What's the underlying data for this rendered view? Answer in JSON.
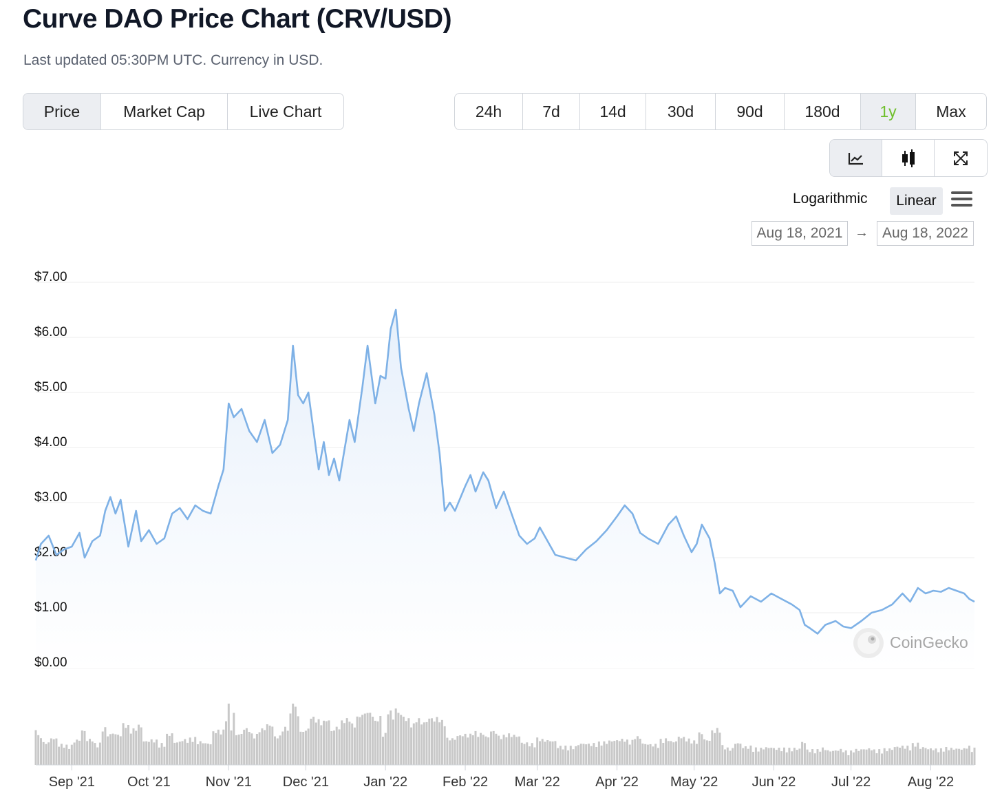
{
  "title": "Curve DAO Price Chart (CRV/USD)",
  "subtitle": "Last updated 05:30PM UTC. Currency in USD.",
  "tabs": [
    {
      "label": "Price",
      "active": true
    },
    {
      "label": "Market Cap",
      "active": false
    },
    {
      "label": "Live Chart",
      "active": false
    }
  ],
  "ranges": [
    {
      "label": "24h",
      "active": false
    },
    {
      "label": "7d",
      "active": false
    },
    {
      "label": "14d",
      "active": false
    },
    {
      "label": "30d",
      "active": false
    },
    {
      "label": "90d",
      "active": false
    },
    {
      "label": "180d",
      "active": false
    },
    {
      "label": "1y",
      "active": true
    },
    {
      "label": "Max",
      "active": false
    }
  ],
  "view_buttons": [
    {
      "icon": "line-chart-icon",
      "active": true
    },
    {
      "icon": "candlestick-icon",
      "active": false
    },
    {
      "icon": "fullscreen-icon",
      "active": false
    }
  ],
  "scale": {
    "logarithmic": "Logarithmic",
    "linear": "Linear",
    "selected": "linear"
  },
  "date_range": {
    "from": "Aug 18, 2021",
    "arrow": "→",
    "to": "Aug 18, 2022"
  },
  "watermark": "CoinGecko",
  "colors": {
    "line": "#7eb1e6",
    "area_top": "#e7f0fb",
    "volume": "#c8c8c8",
    "accent": "#6fbf2c"
  },
  "chart_data": {
    "type": "line",
    "ylim": [
      0,
      7
    ],
    "y_ticks": [
      "$0.00",
      "$1.00",
      "$2.00",
      "$3.00",
      "$4.00",
      "$5.00",
      "$6.00",
      "$7.00"
    ],
    "x_ticks": [
      "Sep '21",
      "Oct '21",
      "Nov '21",
      "Dec '21",
      "Jan '22",
      "Feb '22",
      "Mar '22",
      "Apr '22",
      "May '22",
      "Jun '22",
      "Jul '22",
      "Aug '22"
    ],
    "x_tick_dates": [
      "2021-09-01",
      "2021-10-01",
      "2021-11-01",
      "2021-12-01",
      "2022-01-01",
      "2022-02-01",
      "2022-03-01",
      "2022-04-01",
      "2022-05-01",
      "2022-06-01",
      "2022-07-01",
      "2022-08-01"
    ],
    "x_range": [
      "2021-08-18",
      "2022-08-18"
    ],
    "price_series": {
      "name": "Price",
      "points": [
        [
          "2021-08-18",
          1.95
        ],
        [
          "2021-08-20",
          2.25
        ],
        [
          "2021-08-23",
          2.4
        ],
        [
          "2021-08-26",
          2.05
        ],
        [
          "2021-08-29",
          2.15
        ],
        [
          "2021-09-01",
          2.2
        ],
        [
          "2021-09-04",
          2.45
        ],
        [
          "2021-09-06",
          2.0
        ],
        [
          "2021-09-09",
          2.3
        ],
        [
          "2021-09-12",
          2.4
        ],
        [
          "2021-09-14",
          2.85
        ],
        [
          "2021-09-16",
          3.1
        ],
        [
          "2021-09-18",
          2.8
        ],
        [
          "2021-09-20",
          3.05
        ],
        [
          "2021-09-23",
          2.2
        ],
        [
          "2021-09-26",
          2.85
        ],
        [
          "2021-09-28",
          2.3
        ],
        [
          "2021-10-01",
          2.5
        ],
        [
          "2021-10-04",
          2.25
        ],
        [
          "2021-10-07",
          2.35
        ],
        [
          "2021-10-10",
          2.8
        ],
        [
          "2021-10-13",
          2.9
        ],
        [
          "2021-10-16",
          2.7
        ],
        [
          "2021-10-19",
          2.95
        ],
        [
          "2021-10-22",
          2.85
        ],
        [
          "2021-10-25",
          2.8
        ],
        [
          "2021-10-28",
          3.3
        ],
        [
          "2021-10-30",
          3.6
        ],
        [
          "2021-11-01",
          4.8
        ],
        [
          "2021-11-03",
          4.55
        ],
        [
          "2021-11-06",
          4.7
        ],
        [
          "2021-11-09",
          4.3
        ],
        [
          "2021-11-12",
          4.1
        ],
        [
          "2021-11-15",
          4.5
        ],
        [
          "2021-11-18",
          3.9
        ],
        [
          "2021-11-21",
          4.05
        ],
        [
          "2021-11-24",
          4.5
        ],
        [
          "2021-11-26",
          5.85
        ],
        [
          "2021-11-28",
          4.95
        ],
        [
          "2021-11-30",
          4.8
        ],
        [
          "2021-12-02",
          5.0
        ],
        [
          "2021-12-04",
          4.3
        ],
        [
          "2021-12-06",
          3.6
        ],
        [
          "2021-12-08",
          4.1
        ],
        [
          "2021-12-10",
          3.5
        ],
        [
          "2021-12-12",
          3.8
        ],
        [
          "2021-12-14",
          3.4
        ],
        [
          "2021-12-16",
          3.95
        ],
        [
          "2021-12-18",
          4.5
        ],
        [
          "2021-12-20",
          4.1
        ],
        [
          "2021-12-23",
          5.1
        ],
        [
          "2021-12-25",
          5.85
        ],
        [
          "2021-12-28",
          4.8
        ],
        [
          "2021-12-30",
          5.3
        ],
        [
          "2022-01-01",
          5.25
        ],
        [
          "2022-01-03",
          6.15
        ],
        [
          "2022-01-05",
          6.5
        ],
        [
          "2022-01-07",
          5.45
        ],
        [
          "2022-01-10",
          4.7
        ],
        [
          "2022-01-12",
          4.3
        ],
        [
          "2022-01-14",
          4.8
        ],
        [
          "2022-01-17",
          5.35
        ],
        [
          "2022-01-20",
          4.6
        ],
        [
          "2022-01-22",
          3.9
        ],
        [
          "2022-01-24",
          2.85
        ],
        [
          "2022-01-26",
          3.0
        ],
        [
          "2022-01-28",
          2.85
        ],
        [
          "2022-02-01",
          3.3
        ],
        [
          "2022-02-03",
          3.5
        ],
        [
          "2022-02-05",
          3.2
        ],
        [
          "2022-02-08",
          3.55
        ],
        [
          "2022-02-10",
          3.4
        ],
        [
          "2022-02-13",
          2.9
        ],
        [
          "2022-02-16",
          3.2
        ],
        [
          "2022-02-19",
          2.8
        ],
        [
          "2022-02-22",
          2.4
        ],
        [
          "2022-02-25",
          2.25
        ],
        [
          "2022-02-28",
          2.35
        ],
        [
          "2022-03-02",
          2.55
        ],
        [
          "2022-03-05",
          2.3
        ],
        [
          "2022-03-08",
          2.05
        ],
        [
          "2022-03-12",
          2.0
        ],
        [
          "2022-03-16",
          1.95
        ],
        [
          "2022-03-20",
          2.15
        ],
        [
          "2022-03-24",
          2.3
        ],
        [
          "2022-03-28",
          2.5
        ],
        [
          "2022-04-01",
          2.75
        ],
        [
          "2022-04-04",
          2.95
        ],
        [
          "2022-04-07",
          2.8
        ],
        [
          "2022-04-10",
          2.45
        ],
        [
          "2022-04-13",
          2.35
        ],
        [
          "2022-04-17",
          2.25
        ],
        [
          "2022-04-21",
          2.6
        ],
        [
          "2022-04-24",
          2.75
        ],
        [
          "2022-04-27",
          2.4
        ],
        [
          "2022-04-30",
          2.1
        ],
        [
          "2022-05-02",
          2.25
        ],
        [
          "2022-05-04",
          2.6
        ],
        [
          "2022-05-07",
          2.35
        ],
        [
          "2022-05-09",
          1.9
        ],
        [
          "2022-05-11",
          1.35
        ],
        [
          "2022-05-13",
          1.45
        ],
        [
          "2022-05-16",
          1.4
        ],
        [
          "2022-05-19",
          1.1
        ],
        [
          "2022-05-23",
          1.3
        ],
        [
          "2022-05-27",
          1.2
        ],
        [
          "2022-05-31",
          1.35
        ],
        [
          "2022-06-04",
          1.25
        ],
        [
          "2022-06-08",
          1.15
        ],
        [
          "2022-06-11",
          1.05
        ],
        [
          "2022-06-13",
          0.78
        ],
        [
          "2022-06-15",
          0.72
        ],
        [
          "2022-06-18",
          0.62
        ],
        [
          "2022-06-21",
          0.78
        ],
        [
          "2022-06-25",
          0.85
        ],
        [
          "2022-06-28",
          0.75
        ],
        [
          "2022-07-01",
          0.72
        ],
        [
          "2022-07-05",
          0.85
        ],
        [
          "2022-07-09",
          1.0
        ],
        [
          "2022-07-13",
          1.05
        ],
        [
          "2022-07-17",
          1.15
        ],
        [
          "2022-07-21",
          1.35
        ],
        [
          "2022-07-24",
          1.2
        ],
        [
          "2022-07-27",
          1.45
        ],
        [
          "2022-07-30",
          1.35
        ],
        [
          "2022-08-02",
          1.4
        ],
        [
          "2022-08-05",
          1.38
        ],
        [
          "2022-08-08",
          1.45
        ],
        [
          "2022-08-11",
          1.4
        ],
        [
          "2022-08-14",
          1.35
        ],
        [
          "2022-08-16",
          1.25
        ],
        [
          "2022-08-18",
          1.2
        ]
      ]
    },
    "volume_series": {
      "name": "Volume",
      "spikes": [
        [
          "2021-11-01",
          1.0
        ],
        [
          "2021-11-03",
          0.85
        ],
        [
          "2021-11-26",
          1.0
        ],
        [
          "2021-11-27",
          0.95
        ],
        [
          "2022-01-05",
          0.92
        ],
        [
          "2022-01-06",
          0.85
        ],
        [
          "2021-12-28",
          0.72
        ]
      ]
    },
    "grid": true,
    "legend": "none"
  }
}
